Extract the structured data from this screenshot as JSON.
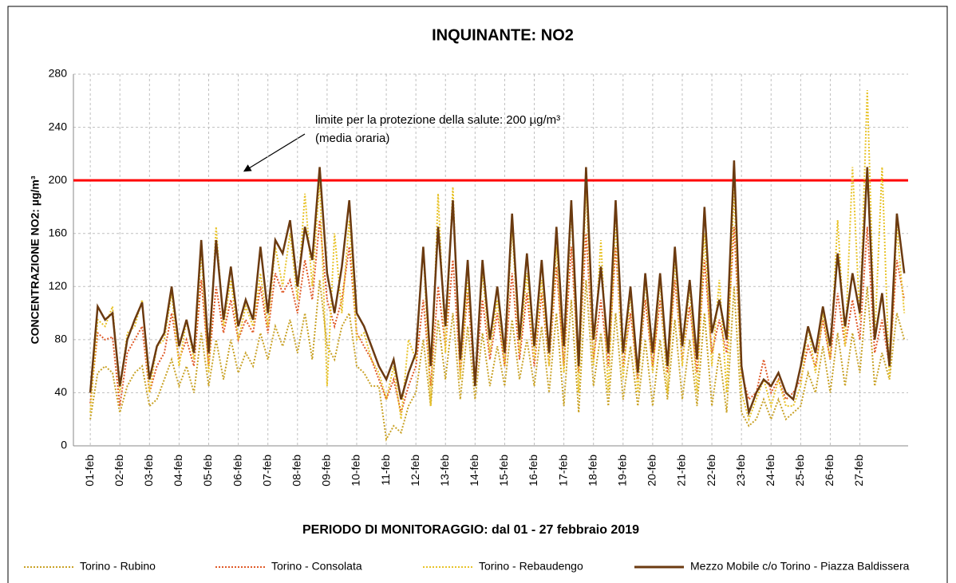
{
  "chart_data": {
    "type": "line",
    "title": "INQUINANTE: NO2",
    "xlabel": "PERIODO DI MONITORAGGIO: dal 01 - 27 febbraio 2019",
    "ylabel": "CONCENTRAZIONE NO2:  µg/m³",
    "xlim": [
      -0.57,
      27.63
    ],
    "ylim": [
      0,
      280
    ],
    "yticks": [
      0,
      40,
      80,
      120,
      160,
      200,
      240,
      280
    ],
    "xticks": [
      {
        "value": 0,
        "label": "01-feb"
      },
      {
        "value": 1,
        "label": "02-feb"
      },
      {
        "value": 2,
        "label": "03-feb"
      },
      {
        "value": 3,
        "label": "04-feb"
      },
      {
        "value": 4,
        "label": "05-feb"
      },
      {
        "value": 5,
        "label": "06-feb"
      },
      {
        "value": 6,
        "label": "07-feb"
      },
      {
        "value": 7,
        "label": "08-feb"
      },
      {
        "value": 8,
        "label": "09-feb"
      },
      {
        "value": 9,
        "label": "10-feb"
      },
      {
        "value": 10,
        "label": "11-feb"
      },
      {
        "value": 11,
        "label": "12-feb"
      },
      {
        "value": 12,
        "label": "13-feb"
      },
      {
        "value": 13,
        "label": "14-feb"
      },
      {
        "value": 14,
        "label": "15-feb"
      },
      {
        "value": 15,
        "label": "16-feb"
      },
      {
        "value": 16,
        "label": "17-feb"
      },
      {
        "value": 17,
        "label": "18-feb"
      },
      {
        "value": 18,
        "label": "19-feb"
      },
      {
        "value": 19,
        "label": "20-feb"
      },
      {
        "value": 20,
        "label": "21-feb"
      },
      {
        "value": 21,
        "label": "22-feb"
      },
      {
        "value": 22,
        "label": "23-feb"
      },
      {
        "value": 23,
        "label": "24-feb"
      },
      {
        "value": 24,
        "label": "25-feb"
      },
      {
        "value": 25,
        "label": "26-feb"
      },
      {
        "value": 26,
        "label": "27-feb"
      }
    ],
    "grid": true,
    "threshold": {
      "value": 200,
      "color": "#ff0000",
      "text": [
        "limite per la protezione della salute: 200  µg/m³",
        "(media oraria)"
      ]
    },
    "x": [
      0,
      0.25,
      0.5,
      0.75,
      1,
      1.25,
      1.5,
      1.75,
      2,
      2.25,
      2.5,
      2.75,
      3,
      3.25,
      3.5,
      3.75,
      4,
      4.25,
      4.5,
      4.75,
      5,
      5.25,
      5.5,
      5.75,
      6,
      6.25,
      6.5,
      6.75,
      7,
      7.25,
      7.5,
      7.75,
      8,
      8.25,
      8.5,
      8.75,
      9,
      9.25,
      9.5,
      9.75,
      10,
      10.25,
      10.5,
      10.75,
      11,
      11.25,
      11.5,
      11.75,
      12,
      12.25,
      12.5,
      12.75,
      13,
      13.25,
      13.5,
      13.75,
      14,
      14.25,
      14.5,
      14.75,
      15,
      15.25,
      15.5,
      15.75,
      16,
      16.25,
      16.5,
      16.75,
      17,
      17.25,
      17.5,
      17.75,
      18,
      18.25,
      18.5,
      18.75,
      19,
      19.25,
      19.5,
      19.75,
      20,
      20.25,
      20.5,
      20.75,
      21,
      21.25,
      21.5,
      21.75,
      22,
      22.25,
      22.5,
      22.75,
      23,
      23.25,
      23.5,
      23.75,
      24,
      24.25,
      24.5,
      24.75,
      25,
      25.25,
      25.5,
      25.75,
      26,
      26.25,
      26.5,
      26.75,
      27,
      27.25,
      27.5
    ],
    "series": [
      {
        "name": "Torino - Rubino",
        "color": "#c9a227",
        "dash": true,
        "values": [
          20,
          55,
          60,
          55,
          25,
          45,
          55,
          60,
          30,
          35,
          50,
          65,
          45,
          60,
          40,
          85,
          45,
          80,
          50,
          80,
          55,
          70,
          60,
          85,
          65,
          90,
          75,
          95,
          70,
          100,
          65,
          125,
          75,
          65,
          90,
          100,
          60,
          55,
          45,
          45,
          5,
          15,
          10,
          30,
          40,
          80,
          30,
          95,
          50,
          100,
          35,
          90,
          35,
          85,
          45,
          75,
          45,
          95,
          50,
          80,
          45,
          90,
          40,
          100,
          30,
          110,
          25,
          125,
          45,
          85,
          30,
          100,
          35,
          75,
          30,
          80,
          30,
          80,
          35,
          95,
          35,
          80,
          30,
          100,
          30,
          70,
          25,
          120,
          25,
          15,
          20,
          35,
          20,
          35,
          20,
          25,
          30,
          55,
          40,
          75,
          40,
          85,
          45,
          85,
          55,
          120,
          45,
          70,
          50,
          100,
          80
        ]
      },
      {
        "name": "Torino - Consolata",
        "color": "#e05a28",
        "dash": true,
        "values": [
          32,
          85,
          80,
          82,
          30,
          70,
          80,
          90,
          40,
          60,
          70,
          100,
          65,
          80,
          60,
          125,
          60,
          120,
          85,
          110,
          80,
          95,
          85,
          120,
          85,
          130,
          115,
          125,
          100,
          140,
          110,
          170,
          110,
          90,
          110,
          150,
          85,
          75,
          65,
          50,
          35,
          50,
          25,
          45,
          60,
          110,
          45,
          120,
          75,
          140,
          55,
          115,
          45,
          110,
          65,
          100,
          60,
          130,
          65,
          115,
          60,
          115,
          60,
          135,
          60,
          150,
          55,
          160,
          65,
          110,
          60,
          150,
          60,
          100,
          50,
          110,
          60,
          110,
          55,
          125,
          65,
          105,
          55,
          140,
          70,
          95,
          70,
          165,
          55,
          35,
          40,
          65,
          40,
          50,
          35,
          40,
          50,
          75,
          60,
          95,
          65,
          115,
          75,
          110,
          80,
          165,
          70,
          95,
          60,
          140,
          110
        ]
      },
      {
        "name": "Torino - Rebaudengo",
        "color": "#e8c32a",
        "dash": true,
        "values": [
          25,
          95,
          90,
          105,
          40,
          85,
          90,
          110,
          40,
          75,
          80,
          115,
          60,
          95,
          65,
          145,
          55,
          165,
          90,
          125,
          80,
          105,
          90,
          130,
          90,
          150,
          120,
          160,
          110,
          190,
          120,
          200,
          45,
          160,
          100,
          170,
          80,
          85,
          65,
          55,
          35,
          60,
          20,
          80,
          65,
          150,
          30,
          190,
          70,
          195,
          50,
          125,
          50,
          130,
          70,
          110,
          60,
          165,
          70,
          130,
          65,
          125,
          60,
          150,
          55,
          180,
          40,
          195,
          60,
          155,
          40,
          170,
          50,
          115,
          40,
          125,
          55,
          125,
          40,
          140,
          60,
          120,
          40,
          160,
          60,
          125,
          40,
          195,
          40,
          20,
          35,
          50,
          30,
          50,
          30,
          30,
          45,
          90,
          55,
          100,
          65,
          170,
          75,
          210,
          95,
          268,
          80,
          210,
          50,
          165,
          100
        ]
      },
      {
        "name": "Mezzo Mobile c/o Torino - Piazza Baldissera",
        "color": "#6b3a10",
        "dash": false,
        "values": [
          40,
          105,
          95,
          100,
          45,
          80,
          95,
          108,
          50,
          75,
          85,
          120,
          75,
          95,
          70,
          155,
          70,
          155,
          95,
          135,
          90,
          110,
          95,
          150,
          100,
          155,
          145,
          170,
          120,
          165,
          140,
          210,
          130,
          100,
          135,
          185,
          100,
          90,
          75,
          60,
          50,
          65,
          35,
          55,
          70,
          150,
          60,
          165,
          90,
          185,
          65,
          140,
          45,
          140,
          80,
          120,
          70,
          175,
          80,
          145,
          75,
          140,
          70,
          165,
          75,
          185,
          60,
          210,
          80,
          135,
          70,
          185,
          70,
          120,
          55,
          130,
          70,
          130,
          60,
          150,
          75,
          125,
          65,
          180,
          85,
          110,
          80,
          215,
          60,
          25,
          40,
          50,
          45,
          55,
          40,
          35,
          60,
          90,
          70,
          105,
          75,
          145,
          90,
          130,
          100,
          210,
          80,
          115,
          60,
          175,
          130
        ]
      }
    ]
  }
}
